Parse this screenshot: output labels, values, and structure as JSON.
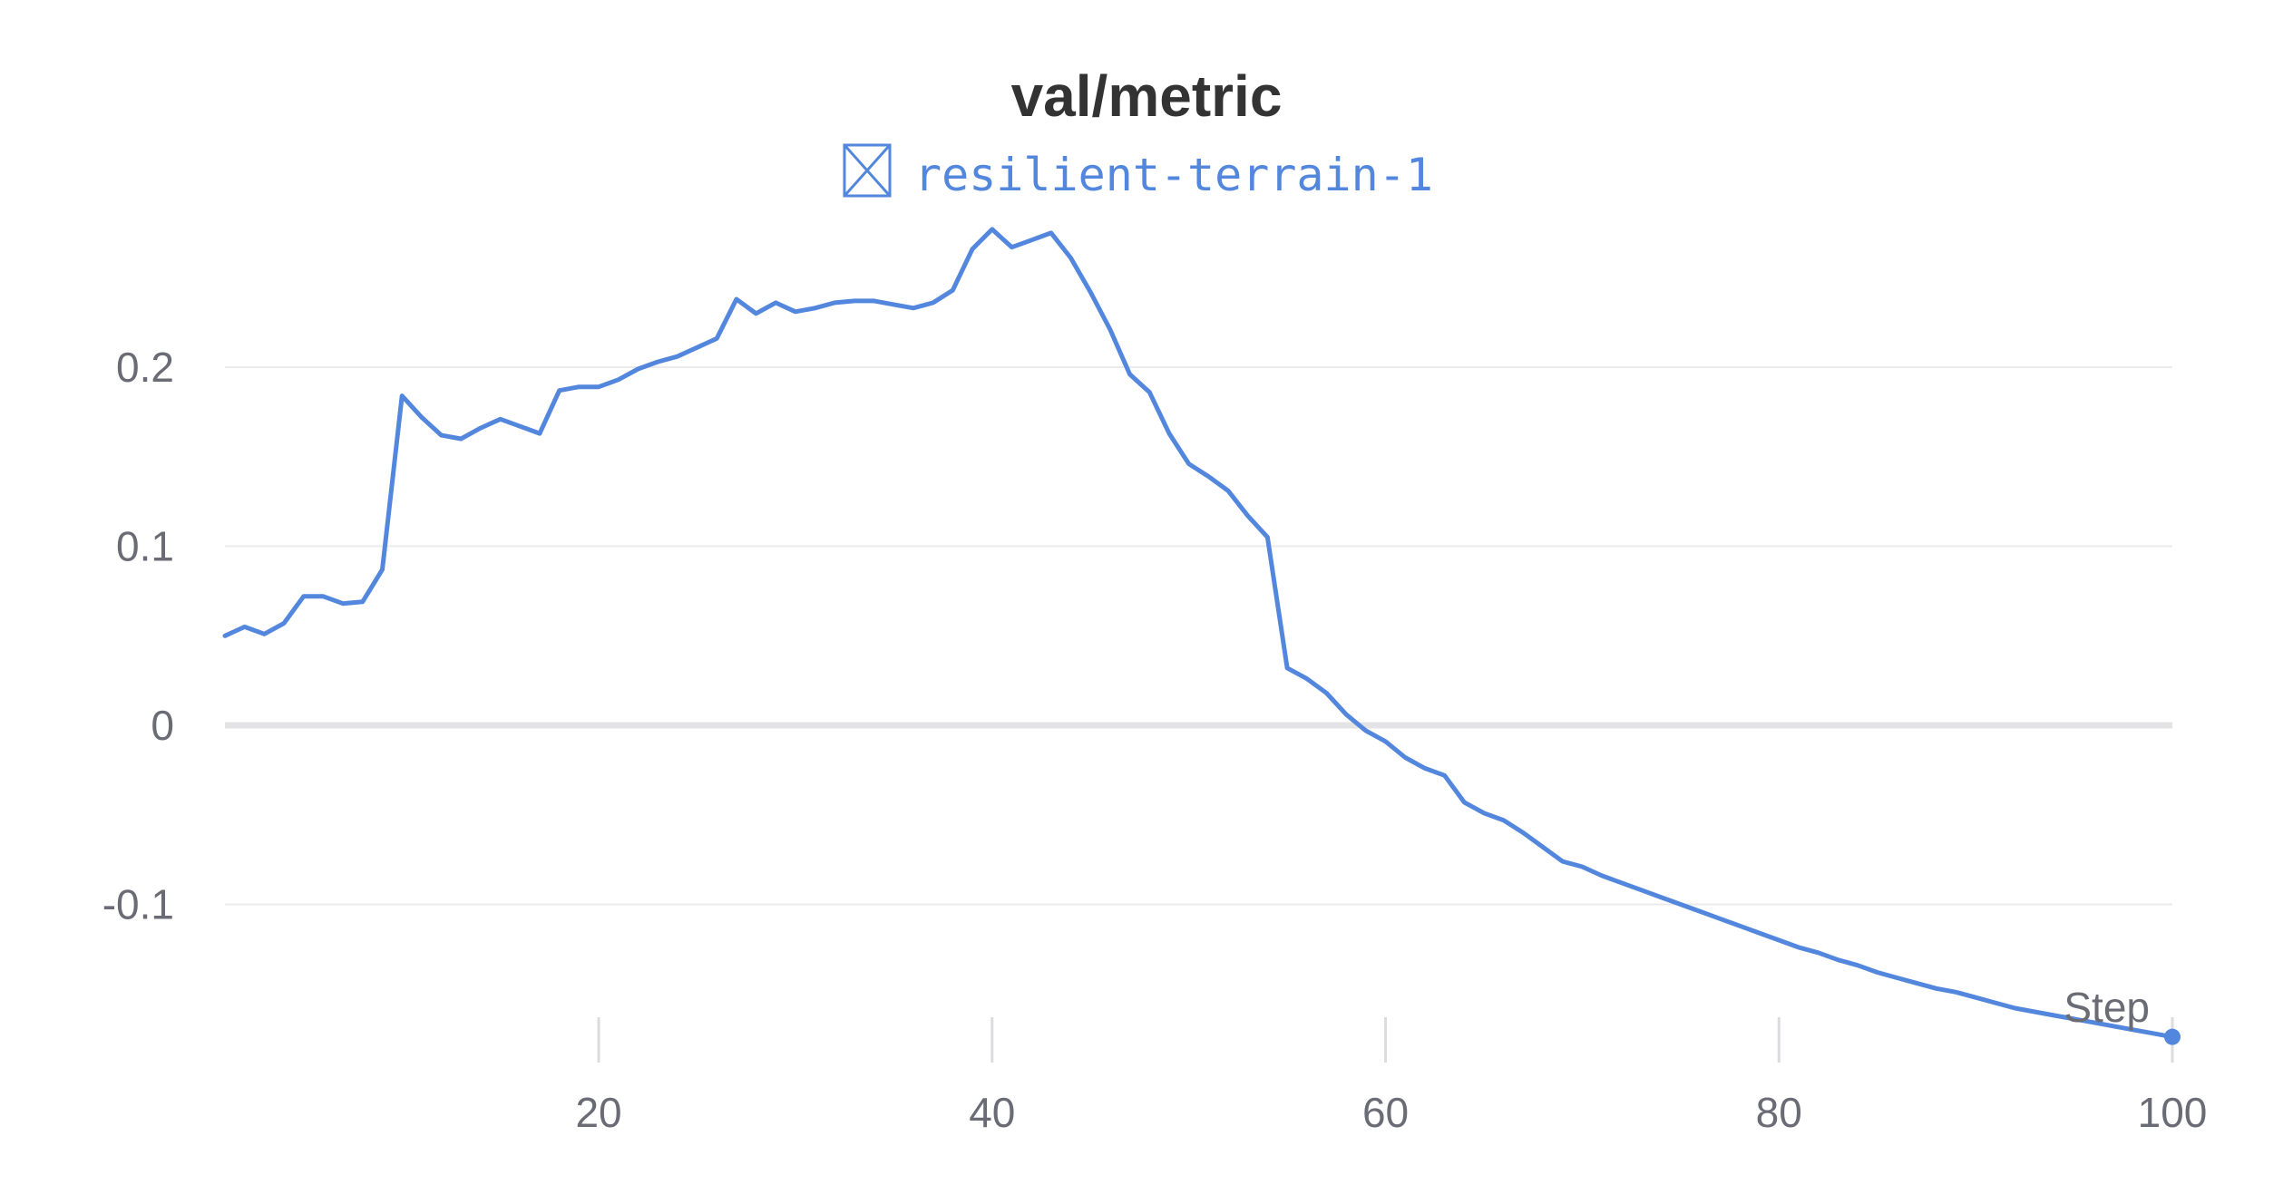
{
  "chart_data": {
    "type": "line",
    "title": "val/metric",
    "xlabel": "Step",
    "ylabel": "",
    "xlim": [
      1,
      100
    ],
    "ylim": [
      -0.175,
      0.28
    ],
    "xticks": [
      20,
      40,
      60,
      80,
      100
    ],
    "yticks": [
      0.2,
      0.1,
      0,
      -0.1
    ],
    "ytick_labels": [
      "0.2",
      "0.1",
      "0",
      "-0.1"
    ],
    "grid": true,
    "legend": "top",
    "series": [
      {
        "name": "resilient-terrain-1",
        "color": "#5387dd",
        "x": [
          1,
          2,
          3,
          4,
          5,
          6,
          7,
          8,
          9,
          10,
          11,
          12,
          13,
          14,
          15,
          16,
          17,
          18,
          19,
          20,
          21,
          22,
          23,
          24,
          25,
          26,
          27,
          28,
          29,
          30,
          31,
          32,
          33,
          34,
          35,
          36,
          37,
          38,
          39,
          40,
          41,
          42,
          43,
          44,
          45,
          46,
          47,
          48,
          49,
          50,
          51,
          52,
          53,
          54,
          55,
          56,
          57,
          58,
          59,
          60,
          61,
          62,
          63,
          64,
          65,
          66,
          67,
          68,
          69,
          70,
          71,
          72,
          73,
          74,
          75,
          76,
          77,
          78,
          79,
          80,
          81,
          82,
          83,
          84,
          85,
          86,
          87,
          88,
          89,
          90,
          91,
          92,
          93,
          94,
          95,
          96,
          97,
          98,
          99,
          100
        ],
        "y": [
          0.05,
          0.055,
          0.051,
          0.057,
          0.072,
          0.072,
          0.068,
          0.069,
          0.087,
          0.184,
          0.172,
          0.162,
          0.16,
          0.166,
          0.171,
          0.167,
          0.163,
          0.187,
          0.189,
          0.189,
          0.193,
          0.199,
          0.203,
          0.206,
          0.211,
          0.216,
          0.238,
          0.23,
          0.236,
          0.231,
          0.233,
          0.236,
          0.237,
          0.237,
          0.235,
          0.233,
          0.236,
          0.243,
          0.266,
          0.277,
          0.267,
          0.271,
          0.275,
          0.261,
          0.242,
          0.221,
          0.196,
          0.186,
          0.163,
          0.146,
          0.139,
          0.131,
          0.117,
          0.105,
          0.032,
          0.026,
          0.018,
          0.006,
          -0.003,
          -0.009,
          -0.018,
          -0.024,
          -0.028,
          -0.043,
          -0.049,
          -0.053,
          -0.06,
          -0.068,
          -0.076,
          -0.079,
          -0.084,
          -0.088,
          -0.092,
          -0.096,
          -0.1,
          -0.104,
          -0.108,
          -0.112,
          -0.116,
          -0.12,
          -0.124,
          -0.127,
          -0.131,
          -0.134,
          -0.138,
          -0.141,
          -0.144,
          -0.147,
          -0.149,
          -0.152,
          -0.155,
          -0.158,
          -0.16,
          -0.162,
          -0.164,
          -0.166,
          -0.168,
          -0.17,
          -0.172,
          -0.174
        ]
      }
    ]
  }
}
